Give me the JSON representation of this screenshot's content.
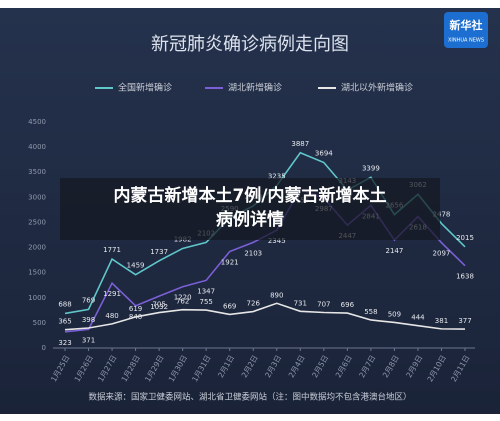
{
  "chart_data": {
    "type": "line",
    "title": "新冠肺炎确诊病例走向图",
    "categories": [
      "1月25日",
      "1月26日",
      "1月27日",
      "1月28日",
      "1月29日",
      "1月30日",
      "1月31日",
      "2月1日",
      "2月2日",
      "2月3日",
      "2月4日",
      "2月5日",
      "2月6日",
      "2月7日",
      "2月8日",
      "2月9日",
      "2月10日",
      "2月11日"
    ],
    "series": [
      {
        "name": "全国新增确诊",
        "color": "#5fc6c9",
        "values": [
          688,
          769,
          1771,
          1459,
          1737,
          1982,
          2102,
          2590,
          2829,
          3235,
          3887,
          3694,
          3143,
          3399,
          2656,
          3062,
          2478,
          2015
        ]
      },
      {
        "name": "湖北新增确诊",
        "color": "#7b5fd6",
        "values": [
          323,
          371,
          1291,
          840,
          1032,
          1220,
          1347,
          1921,
          2103,
          2345,
          3156,
          2987,
          2447,
          2841,
          2147,
          2618,
          2097,
          1638
        ]
      },
      {
        "name": "湖北以外新增确诊",
        "color": "#e6e6e6",
        "values": [
          365,
          398,
          480,
          619,
          705,
          762,
          755,
          669,
          726,
          890,
          731,
          707,
          696,
          558,
          509,
          444,
          381,
          377
        ]
      }
    ],
    "ylim": [
      0,
      4500
    ],
    "yticks": [
      0,
      500,
      1000,
      1500,
      2000,
      2500,
      3000,
      3500,
      4000,
      4500
    ],
    "grid": false,
    "source": "数据来源：国家卫健委网站、湖北省卫健委网站（注：图中数据均不包含港澳台地区）"
  },
  "logo": {
    "name": "新华社",
    "subtitle": "XINHUA NEWS"
  },
  "overlay": {
    "line1": "内蒙古新增本土7例/内蒙古新增本土",
    "line2": "病例详情"
  }
}
